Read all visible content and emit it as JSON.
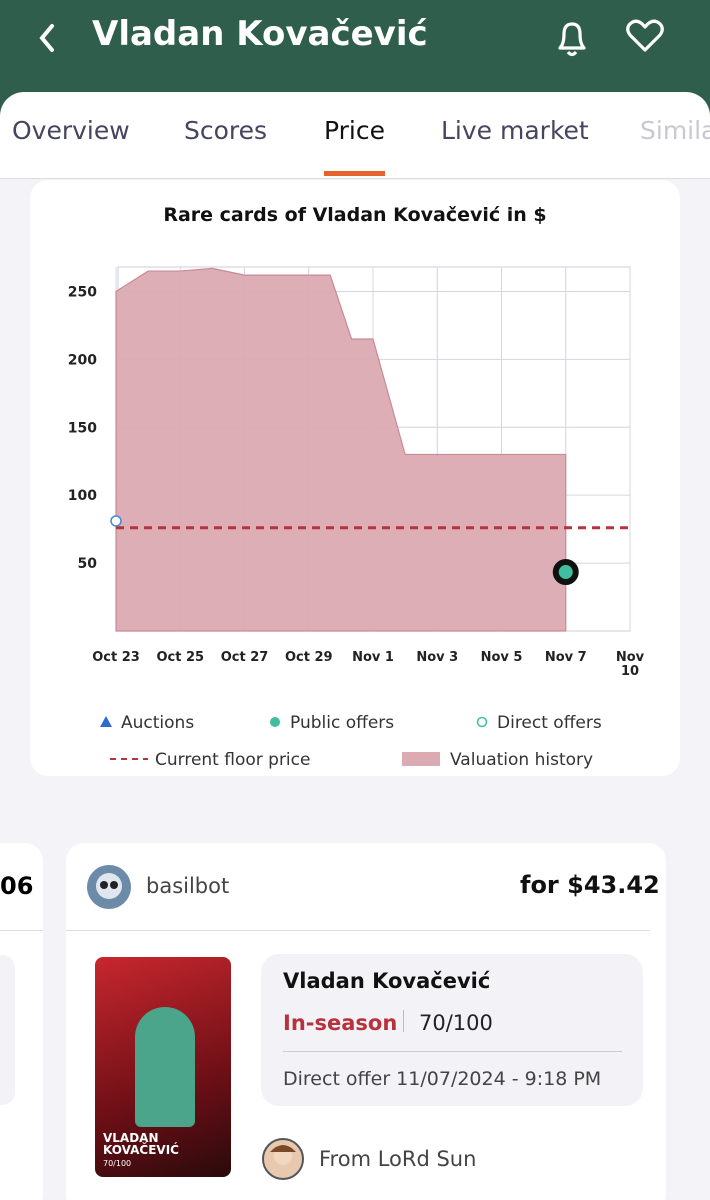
{
  "header": {
    "title": "Vladan Kovačević"
  },
  "tabs": {
    "items": [
      "Overview",
      "Scores",
      "Price",
      "Live market",
      "Simila"
    ],
    "active": 2
  },
  "chart_data": {
    "type": "area",
    "title": "Rare cards of Vladan Kovačević in $",
    "xlim": [
      "Oct 23",
      "Nov 10"
    ],
    "xticks": [
      "Oct 23",
      "Oct 25",
      "Oct 27",
      "Oct 29",
      "Nov 1",
      "Nov 3",
      "Nov 5",
      "Nov 7",
      "Nov 10"
    ],
    "ylim": [
      0,
      268
    ],
    "yticks": [
      50,
      100,
      150,
      200,
      250
    ],
    "grid": true,
    "series": [
      {
        "name": "Valuation history",
        "type": "area",
        "color": "#dcaab2",
        "x": [
          "Oct 23",
          "Oct 24",
          "Oct 25",
          "Oct 26",
          "Oct 27",
          "Oct 30",
          "Oct 31",
          "Nov 1",
          "Nov 2",
          "Nov 7"
        ],
        "values": [
          250,
          265,
          265,
          267,
          262,
          262,
          215,
          215,
          130,
          130
        ]
      },
      {
        "name": "Auctions",
        "type": "triangle",
        "color": "#2d6bd0",
        "x": [],
        "values": []
      },
      {
        "name": "Public offers",
        "type": "dot",
        "color": "#3fbf9d",
        "x": [
          "Nov 7"
        ],
        "values": [
          43.42
        ]
      },
      {
        "name": "Direct offers",
        "type": "ring",
        "color": "#4a86d6",
        "x": [
          "Oct 23"
        ],
        "values": [
          81
        ]
      }
    ],
    "floor": {
      "name": "Current floor price",
      "value": 76,
      "color": "#b8323c"
    }
  },
  "offers": {
    "previous_partial": "06",
    "seller": "basilbot",
    "price": "for $43.42",
    "card": {
      "line1": "VLADAN",
      "line2": "KOVAČEVIĆ",
      "serial": "70/100"
    },
    "player": "Vladan Kovačević",
    "season": "In-season",
    "serial": "70/100",
    "offer": "Direct offer 11/07/2024 - 9:18 PM",
    "from": "From LoRd Sun"
  }
}
